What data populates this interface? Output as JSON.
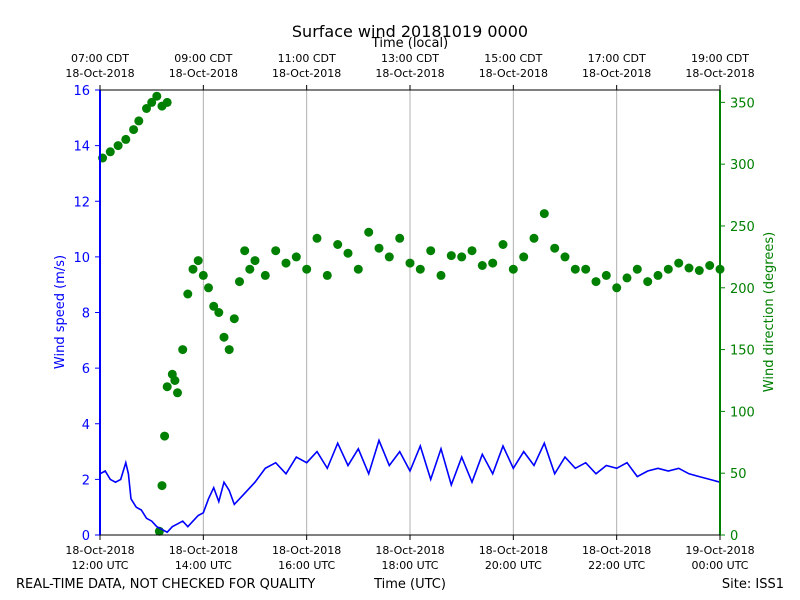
{
  "chart_data": {
    "type": "line+scatter",
    "title": "Surface wind 20181019 0000",
    "top_axis_label": "Time (local)",
    "xlabel": "Time (UTC)",
    "ylabel_left": "Wind speed (m/s)",
    "ylabel_right": "Wind direction (degrees)",
    "colors": {
      "speed": "#0000ff",
      "direction": "#008000",
      "grid": "#b0b0b0"
    },
    "x_range_hours_utc": [
      12,
      24
    ],
    "ylim_left": [
      0,
      16
    ],
    "ylim_right": [
      0,
      360
    ],
    "left_ticks": [
      0,
      2,
      4,
      6,
      8,
      10,
      12,
      14,
      16
    ],
    "right_ticks": [
      0,
      50,
      100,
      150,
      200,
      250,
      300,
      350
    ],
    "bottom_ticks": [
      {
        "x": 12,
        "line1": "18-Oct-2018",
        "line2": "12:00 UTC"
      },
      {
        "x": 14,
        "line1": "18-Oct-2018",
        "line2": "14:00 UTC"
      },
      {
        "x": 16,
        "line1": "18-Oct-2018",
        "line2": "16:00 UTC"
      },
      {
        "x": 18,
        "line1": "18-Oct-2018",
        "line2": "18:00 UTC"
      },
      {
        "x": 20,
        "line1": "18-Oct-2018",
        "line2": "20:00 UTC"
      },
      {
        "x": 22,
        "line1": "18-Oct-2018",
        "line2": "22:00 UTC"
      },
      {
        "x": 24,
        "line1": "19-Oct-2018",
        "line2": "00:00 UTC"
      }
    ],
    "top_ticks": [
      {
        "x": 12,
        "line1": "07:00 CDT",
        "line2": "18-Oct-2018"
      },
      {
        "x": 14,
        "line1": "09:00 CDT",
        "line2": "18-Oct-2018"
      },
      {
        "x": 16,
        "line1": "11:00 CDT",
        "line2": "18-Oct-2018"
      },
      {
        "x": 18,
        "line1": "13:00 CDT",
        "line2": "18-Oct-2018"
      },
      {
        "x": 20,
        "line1": "15:00 CDT",
        "line2": "18-Oct-2018"
      },
      {
        "x": 22,
        "line1": "17:00 CDT",
        "line2": "18-Oct-2018"
      },
      {
        "x": 24,
        "line1": "19:00 CDT",
        "line2": "18-Oct-2018"
      }
    ],
    "grid_x": true,
    "series": [
      {
        "name": "Wind speed",
        "axis": "left",
        "kind": "line",
        "x": [
          12.0,
          12.1,
          12.2,
          12.3,
          12.4,
          12.5,
          12.55,
          12.6,
          12.7,
          12.8,
          12.9,
          13.0,
          13.1,
          13.2,
          13.3,
          13.4,
          13.5,
          13.6,
          13.7,
          13.8,
          13.9,
          14.0,
          14.1,
          14.2,
          14.3,
          14.4,
          14.5,
          14.6,
          14.8,
          15.0,
          15.2,
          15.4,
          15.6,
          15.8,
          16.0,
          16.2,
          16.4,
          16.6,
          16.8,
          17.0,
          17.2,
          17.4,
          17.6,
          17.8,
          18.0,
          18.2,
          18.4,
          18.6,
          18.8,
          19.0,
          19.2,
          19.4,
          19.6,
          19.8,
          20.0,
          20.2,
          20.4,
          20.6,
          20.8,
          21.0,
          21.2,
          21.4,
          21.6,
          21.8,
          22.0,
          22.2,
          22.4,
          22.6,
          22.8,
          23.0,
          23.2,
          23.4,
          23.6,
          23.8,
          24.0
        ],
        "y": [
          2.2,
          2.3,
          2.0,
          1.9,
          2.0,
          2.6,
          2.2,
          1.3,
          1.0,
          0.9,
          0.6,
          0.5,
          0.3,
          0.2,
          0.1,
          0.3,
          0.4,
          0.5,
          0.3,
          0.5,
          0.7,
          0.8,
          1.3,
          1.7,
          1.2,
          1.9,
          1.6,
          1.1,
          1.5,
          1.9,
          2.4,
          2.6,
          2.2,
          2.8,
          2.6,
          3.0,
          2.4,
          3.3,
          2.5,
          3.1,
          2.2,
          3.4,
          2.5,
          3.0,
          2.3,
          3.2,
          2.0,
          3.1,
          1.8,
          2.8,
          1.9,
          2.9,
          2.2,
          3.2,
          2.4,
          3.0,
          2.5,
          3.3,
          2.2,
          2.8,
          2.4,
          2.6,
          2.2,
          2.5,
          2.4,
          2.6,
          2.1,
          2.3,
          2.4,
          2.3,
          2.4,
          2.2,
          2.1,
          2.0,
          1.9
        ]
      },
      {
        "name": "Wind direction",
        "axis": "right",
        "kind": "scatter",
        "x": [
          12.05,
          12.2,
          12.35,
          12.5,
          12.65,
          12.75,
          12.9,
          13.0,
          13.1,
          13.2,
          13.3,
          13.15,
          13.2,
          13.25,
          13.3,
          13.4,
          13.45,
          13.5,
          13.6,
          13.7,
          13.8,
          13.9,
          14.0,
          14.1,
          14.2,
          14.3,
          14.4,
          14.5,
          14.6,
          14.7,
          14.8,
          14.9,
          15.0,
          15.2,
          15.4,
          15.6,
          15.8,
          16.0,
          16.2,
          16.4,
          16.6,
          16.8,
          17.0,
          17.2,
          17.4,
          17.6,
          17.8,
          18.0,
          18.2,
          18.4,
          18.6,
          18.8,
          19.0,
          19.2,
          19.4,
          19.6,
          19.8,
          20.0,
          20.2,
          20.4,
          20.6,
          20.8,
          21.0,
          21.2,
          21.4,
          21.6,
          21.8,
          22.0,
          22.2,
          22.4,
          22.6,
          22.8,
          23.0,
          23.2,
          23.4,
          23.6,
          23.8,
          24.0
        ],
        "y": [
          305,
          310,
          315,
          320,
          328,
          335,
          345,
          350,
          355,
          347,
          350,
          3,
          40,
          80,
          120,
          130,
          125,
          115,
          150,
          195,
          215,
          222,
          210,
          200,
          185,
          180,
          160,
          150,
          175,
          205,
          230,
          215,
          222,
          210,
          230,
          220,
          225,
          215,
          240,
          210,
          235,
          228,
          215,
          245,
          232,
          225,
          240,
          220,
          215,
          230,
          210,
          226,
          225,
          230,
          218,
          220,
          235,
          215,
          225,
          240,
          260,
          232,
          225,
          215,
          215,
          205,
          210,
          200,
          208,
          215,
          205,
          210,
          215,
          220,
          216,
          214,
          218,
          215
        ]
      }
    ],
    "footer": {
      "left": "REAL-TIME DATA, NOT CHECKED FOR QUALITY",
      "right": "Site: ISS1"
    }
  }
}
